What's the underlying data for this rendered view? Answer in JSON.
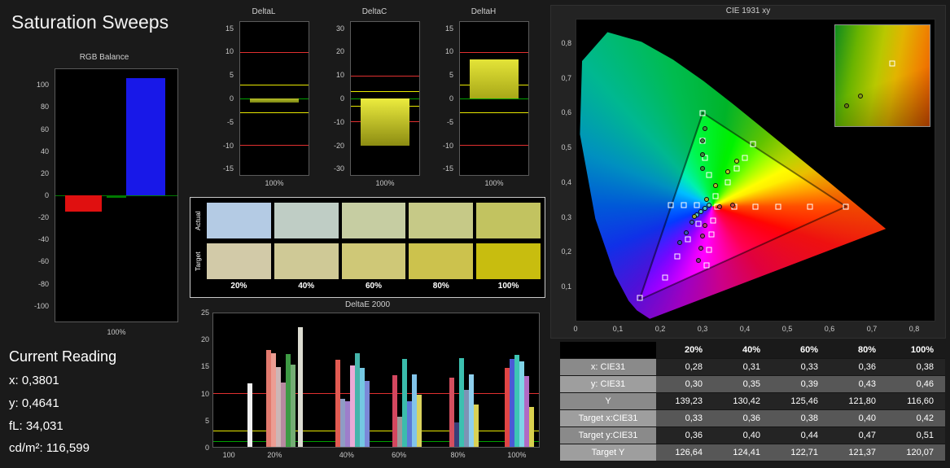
{
  "page": {
    "title": "Saturation Sweeps"
  },
  "current_reading": {
    "heading": "Current Reading",
    "lines": [
      "x: 0,3801",
      "y: 0,4641",
      "fL: 34,031",
      "cd/m²: 116,599"
    ]
  },
  "rgb_balance": {
    "title": "RGB Balance",
    "x_label": "100%",
    "axis": {
      "min": -115,
      "max": 115,
      "ticks": [
        100,
        80,
        60,
        40,
        20,
        0,
        -20,
        -40,
        -60,
        -80,
        -100
      ]
    },
    "bars": [
      {
        "name": "red",
        "color": "#e01010",
        "value": -15
      },
      {
        "name": "green",
        "color": "#007a00",
        "value": -2
      },
      {
        "name": "blue",
        "color": "#1818e8",
        "value": 107
      }
    ]
  },
  "delta_charts": [
    {
      "title": "DeltaL",
      "x_label": "100%",
      "value": -0.9,
      "axis": {
        "min": -16.5,
        "max": 16.5,
        "ticks": [
          15,
          10,
          5,
          0,
          -5,
          -10,
          -15
        ]
      },
      "bar_gradient": [
        "#b8c028",
        "#7a8414"
      ],
      "ref_lines": [
        {
          "value": 10,
          "color": "#e03030"
        },
        {
          "value": -10,
          "color": "#e03030"
        },
        {
          "value": 3,
          "color": "#e8e800"
        },
        {
          "value": -3,
          "color": "#e8e800"
        },
        {
          "value": 0,
          "color": "#00a000"
        }
      ]
    },
    {
      "title": "DeltaC",
      "x_label": "100%",
      "value": -20.3,
      "axis": {
        "min": -33,
        "max": 33,
        "ticks": [
          30,
          20,
          10,
          0,
          -10,
          -20,
          -30
        ]
      },
      "bar_gradient": [
        "#ecec3e",
        "#8c8c12"
      ],
      "ref_lines": [
        {
          "value": 10,
          "color": "#e03030"
        },
        {
          "value": -10,
          "color": "#e03030"
        },
        {
          "value": 3,
          "color": "#e8e800"
        },
        {
          "value": -3,
          "color": "#e8e800"
        },
        {
          "value": 0,
          "color": "#00a000"
        }
      ]
    },
    {
      "title": "DeltaH",
      "x_label": "100%",
      "value": 8.5,
      "axis": {
        "min": -16.5,
        "max": 16.5,
        "ticks": [
          15,
          10,
          5,
          0,
          -5,
          -10,
          -15
        ]
      },
      "bar_gradient": [
        "#e4e438",
        "#a8a818"
      ],
      "ref_lines": [
        {
          "value": 10,
          "color": "#e03030"
        },
        {
          "value": -10,
          "color": "#e03030"
        },
        {
          "value": 3,
          "color": "#e8e800"
        },
        {
          "value": -3,
          "color": "#e8e800"
        },
        {
          "value": 0,
          "color": "#00a000"
        }
      ]
    }
  ],
  "swatches": {
    "row_labels": [
      "Actual",
      "Target"
    ],
    "column_labels": [
      "20%",
      "40%",
      "60%",
      "80%",
      "100%"
    ],
    "actual": [
      "#b4cbe4",
      "#bfcdc5",
      "#c6cda2",
      "#c6c987",
      "#c2c360"
    ],
    "target": [
      "#d2caa8",
      "#cfc996",
      "#cfc877",
      "#ccc24d",
      "#c8bd0f"
    ]
  },
  "deltae2000": {
    "title": "DeltaE 2000",
    "axis": {
      "min": 0,
      "max": 25,
      "ticks": [
        25,
        20,
        15,
        10,
        5,
        0
      ]
    },
    "ref_lines": [
      {
        "value": 10,
        "color": "#e03030"
      },
      {
        "value": 3,
        "color": "#e8e800"
      },
      {
        "value": 1,
        "color": "#00a000"
      }
    ],
    "x_ticks": [
      {
        "label": "100",
        "pos": 5
      },
      {
        "label": "20%",
        "pos": 19
      },
      {
        "label": "40%",
        "pos": 41
      },
      {
        "label": "60%",
        "pos": 57
      },
      {
        "label": "80%",
        "pos": 75
      },
      {
        "label": "100%",
        "pos": 93
      }
    ],
    "bars": [
      {
        "pos": 10.5,
        "value": 11.9,
        "color": "#f0f0f0"
      },
      {
        "pos": 16.3,
        "value": 18.1,
        "color": "#e27a6e"
      },
      {
        "pos": 17.8,
        "value": 17.6,
        "color": "#ec9d93"
      },
      {
        "pos": 19.3,
        "value": 15.0,
        "color": "#cdb6b6"
      },
      {
        "pos": 20.8,
        "value": 12.1,
        "color": "#b889a0"
      },
      {
        "pos": 22.3,
        "value": 17.4,
        "color": "#3e9a44"
      },
      {
        "pos": 23.8,
        "value": 15.4,
        "color": "#74ad74"
      },
      {
        "pos": 26.0,
        "value": 22.4,
        "color": "#dcdcd2"
      },
      {
        "pos": 37.5,
        "value": 16.3,
        "color": "#e25b52"
      },
      {
        "pos": 39.0,
        "value": 9.0,
        "color": "#8f9cc4"
      },
      {
        "pos": 40.5,
        "value": 8.6,
        "color": "#9d7ecb"
      },
      {
        "pos": 42.0,
        "value": 15.2,
        "color": "#eaaad6"
      },
      {
        "pos": 43.5,
        "value": 17.6,
        "color": "#45b5ab"
      },
      {
        "pos": 45.0,
        "value": 14.8,
        "color": "#74c8e2"
      },
      {
        "pos": 46.5,
        "value": 12.3,
        "color": "#7a88d8"
      },
      {
        "pos": 55.0,
        "value": 13.4,
        "color": "#d4475f"
      },
      {
        "pos": 56.5,
        "value": 5.7,
        "color": "#9a9a9a"
      },
      {
        "pos": 58.0,
        "value": 16.5,
        "color": "#3bbcac"
      },
      {
        "pos": 59.5,
        "value": 8.6,
        "color": "#5b7ad6"
      },
      {
        "pos": 61.0,
        "value": 13.6,
        "color": "#82c4ea"
      },
      {
        "pos": 62.5,
        "value": 9.8,
        "color": "#d9d35e"
      },
      {
        "pos": 72.5,
        "value": 13.0,
        "color": "#d44f5f"
      },
      {
        "pos": 74.0,
        "value": 4.5,
        "color": "#3a3e78"
      },
      {
        "pos": 75.5,
        "value": 16.6,
        "color": "#3cc0b0"
      },
      {
        "pos": 77.0,
        "value": 10.6,
        "color": "#7d93b5"
      },
      {
        "pos": 78.5,
        "value": 13.6,
        "color": "#8fd0ee"
      },
      {
        "pos": 80.0,
        "value": 7.9,
        "color": "#d9d155"
      },
      {
        "pos": 89.5,
        "value": 14.8,
        "color": "#e04545"
      },
      {
        "pos": 91.0,
        "value": 16.4,
        "color": "#4b5ad6"
      },
      {
        "pos": 92.5,
        "value": 17.3,
        "color": "#3ec6b4"
      },
      {
        "pos": 94.0,
        "value": 16.0,
        "color": "#7fd4e8"
      },
      {
        "pos": 95.5,
        "value": 13.2,
        "color": "#b06ac4"
      },
      {
        "pos": 97.0,
        "value": 7.4,
        "color": "#d8d04e"
      }
    ]
  },
  "cie": {
    "title": "CIE 1931 xy",
    "x_tick_labels": [
      "0",
      "0,1",
      "0,2",
      "0,3",
      "0,4",
      "0,5",
      "0,6",
      "0,7",
      "0,8"
    ],
    "y_tick_labels": [
      "0,8",
      "0,7",
      "0,6",
      "0,5",
      "0,4",
      "0,3",
      "0,2",
      "0,1"
    ],
    "plot_range": {
      "x_max": 0.85,
      "y_max": 0.87
    },
    "gamut_triangle": [
      [
        0.64,
        0.33
      ],
      [
        0.3,
        0.6
      ],
      [
        0.15,
        0.06
      ]
    ],
    "target_squares": [
      [
        0.335,
        0.33
      ],
      [
        0.375,
        0.33
      ],
      [
        0.425,
        0.33
      ],
      [
        0.48,
        0.33
      ],
      [
        0.555,
        0.33
      ],
      [
        0.64,
        0.33
      ],
      [
        0.315,
        0.42
      ],
      [
        0.305,
        0.47
      ],
      [
        0.3,
        0.52
      ],
      [
        0.3,
        0.6
      ],
      [
        0.33,
        0.36
      ],
      [
        0.36,
        0.4
      ],
      [
        0.38,
        0.44
      ],
      [
        0.4,
        0.47
      ],
      [
        0.42,
        0.51
      ],
      [
        0.29,
        0.28
      ],
      [
        0.265,
        0.235
      ],
      [
        0.24,
        0.185
      ],
      [
        0.21,
        0.125
      ],
      [
        0.15,
        0.065
      ],
      [
        0.285,
        0.335
      ],
      [
        0.255,
        0.335
      ],
      [
        0.225,
        0.335
      ],
      [
        0.325,
        0.29
      ],
      [
        0.32,
        0.25
      ],
      [
        0.315,
        0.205
      ],
      [
        0.31,
        0.16
      ]
    ],
    "measured_points": [
      [
        0.295,
        0.315,
        "#4ec8c8"
      ],
      [
        0.305,
        0.325,
        "#4ec8c8"
      ],
      [
        0.315,
        0.335,
        "#62d0be"
      ],
      [
        0.285,
        0.305,
        "#4cc0d2"
      ],
      [
        0.28,
        0.3,
        "#a2aa2e"
      ],
      [
        0.31,
        0.35,
        "#aab22e"
      ],
      [
        0.33,
        0.39,
        "#b2ba30"
      ],
      [
        0.36,
        0.43,
        "#bac232"
      ],
      [
        0.38,
        0.46,
        "#c2ca34"
      ],
      [
        0.3,
        0.44,
        "#3a8a3a"
      ],
      [
        0.3,
        0.48,
        "#3a8a3a"
      ],
      [
        0.3,
        0.52,
        "#3c8e3c"
      ],
      [
        0.305,
        0.555,
        "#3e923e"
      ],
      [
        0.305,
        0.275,
        "#b04070"
      ],
      [
        0.3,
        0.245,
        "#a04078"
      ],
      [
        0.295,
        0.21,
        "#904080"
      ],
      [
        0.29,
        0.175,
        "#804088"
      ],
      [
        0.275,
        0.285,
        "#4060c0"
      ],
      [
        0.26,
        0.255,
        "#3858b8"
      ],
      [
        0.245,
        0.225,
        "#3050b0"
      ],
      [
        0.34,
        0.33,
        "#c44242"
      ],
      [
        0.37,
        0.335,
        "#cc4a42"
      ]
    ],
    "inset": {
      "square": [
        60,
        38
      ],
      "circles": [
        [
          12,
          80,
          "#6a7a14"
        ],
        [
          27,
          70,
          "#8a9a1a"
        ]
      ]
    }
  },
  "table": {
    "col_headers": [
      "20%",
      "40%",
      "60%",
      "80%",
      "100%"
    ],
    "rows": [
      {
        "label": "x: CIE31",
        "values": [
          "0,28",
          "0,31",
          "0,33",
          "0,36",
          "0,38"
        ]
      },
      {
        "label": "y: CIE31",
        "values": [
          "0,30",
          "0,35",
          "0,39",
          "0,43",
          "0,46"
        ]
      },
      {
        "label": "Y",
        "values": [
          "139,23",
          "130,42",
          "125,46",
          "121,80",
          "116,60"
        ]
      },
      {
        "label": "Target x:CIE31",
        "values": [
          "0,33",
          "0,36",
          "0,38",
          "0,40",
          "0,42"
        ]
      },
      {
        "label": "Target y:CIE31",
        "values": [
          "0,36",
          "0,40",
          "0,44",
          "0,47",
          "0,51"
        ]
      },
      {
        "label": "Target Y",
        "values": [
          "126,64",
          "124,41",
          "122,71",
          "121,37",
          "120,07"
        ]
      }
    ]
  }
}
